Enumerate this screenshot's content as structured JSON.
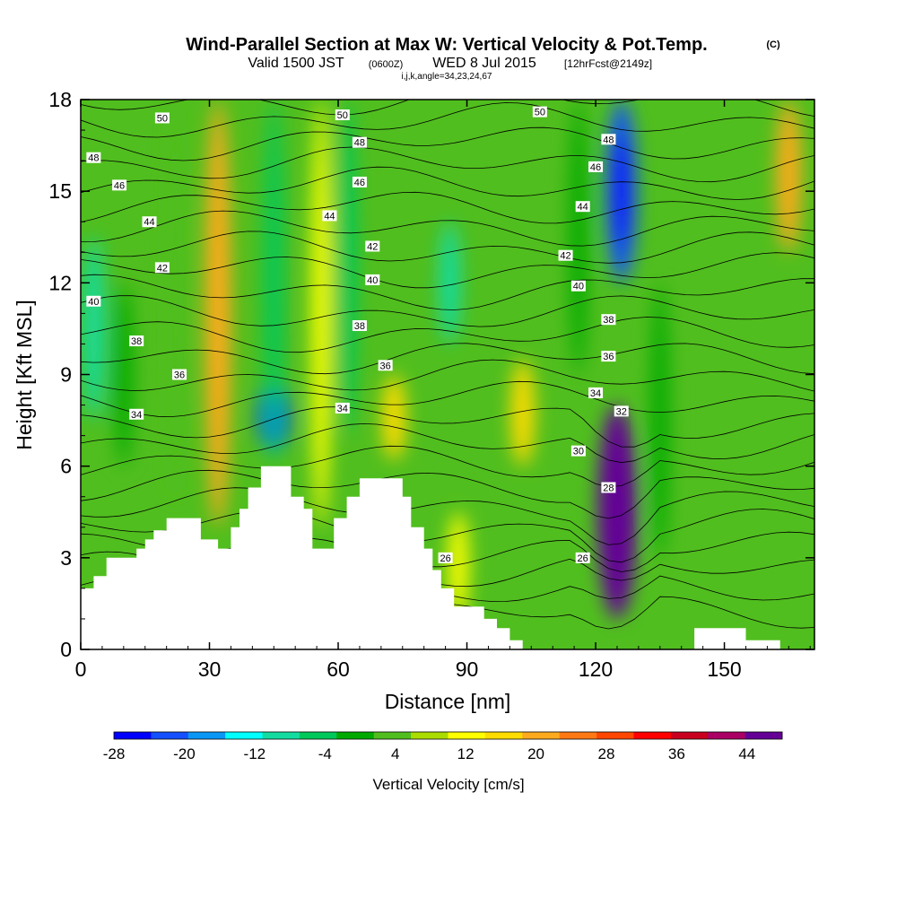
{
  "header": {
    "title": "Wind-Parallel Section at Max W: Vertical Velocity & Pot.Temp.",
    "copyright": "(C)",
    "valid_prefix": "Valid 1500 JST",
    "valid_utc": "(0600Z)",
    "valid_date": "WED 8 Jul 2015",
    "fcst": "[12hrFcst@2149z]",
    "grid": "i,j,k,angle=34,23,24,67"
  },
  "chart_data": {
    "type": "heatmap",
    "title": "Wind-Parallel Section at Max W: Vertical Velocity & Pot.Temp.",
    "xlabel": "Distance [nm]",
    "ylabel": "Height [Kft MSL]",
    "xlim": [
      0,
      171
    ],
    "ylim": [
      0,
      18
    ],
    "xticks": [
      "0",
      "30",
      "60",
      "90",
      "120",
      "150"
    ],
    "xtick_values": [
      0,
      30,
      60,
      90,
      120,
      150
    ],
    "yticks": [
      "0",
      "3",
      "6",
      "9",
      "12",
      "15",
      "18"
    ],
    "ytick_values": [
      0,
      3,
      6,
      9,
      12,
      15,
      18
    ],
    "colorbar": {
      "label": "Vertical Velocity [cm/s]",
      "min": -28,
      "max": 48,
      "step": 4,
      "tick_labels": [
        "-28",
        "-20",
        "-12",
        "-4",
        "4",
        "12",
        "20",
        "28",
        "36",
        "44"
      ],
      "colors": [
        "#0000ff",
        "#1450ff",
        "#0a96f5",
        "#00ffff",
        "#14dca0",
        "#00c85a",
        "#00aa00",
        "#50be1e",
        "#aadc00",
        "#ffff00",
        "#ffdc00",
        "#ffaa1e",
        "#ff7814",
        "#ff4600",
        "#ff0000",
        "#c8001e",
        "#aa0064",
        "#640096"
      ]
    },
    "series": [
      {
        "type": "w_column",
        "x": 3,
        "y_from": 7.5,
        "y_to": 13.5,
        "w": -12
      },
      {
        "type": "w_column",
        "x": 10,
        "y_from": 6,
        "y_to": 12,
        "w": -4
      },
      {
        "type": "w_column",
        "x": 22,
        "y_from": 5,
        "y_to": 18,
        "w": 2
      },
      {
        "type": "w_column",
        "x": 32,
        "y_from": 4,
        "y_to": 18,
        "w": 18
      },
      {
        "type": "w_column",
        "x": 45,
        "y_from": 6.5,
        "y_to": 8.8,
        "w": -26
      },
      {
        "type": "w_column",
        "x": 45,
        "y_from": 6,
        "y_to": 18,
        "w": -8
      },
      {
        "type": "w_column",
        "x": 56,
        "y_from": 4,
        "y_to": 18,
        "w": 8
      },
      {
        "type": "w_column",
        "x": 62,
        "y_from": 7,
        "y_to": 18,
        "w": -8
      },
      {
        "type": "w_column",
        "x": 73,
        "y_from": 6.2,
        "y_to": 9,
        "w": 14
      },
      {
        "type": "w_column",
        "x": 86,
        "y_from": 10,
        "y_to": 14,
        "w": -10
      },
      {
        "type": "w_column",
        "x": 88,
        "y_from": 1,
        "y_to": 4.5,
        "w": 10
      },
      {
        "type": "w_column",
        "x": 103,
        "y_from": 6,
        "y_to": 9.5,
        "w": 14
      },
      {
        "type": "w_column",
        "x": 116,
        "y_from": 9,
        "y_to": 18,
        "w": -3
      },
      {
        "type": "w_column",
        "x": 125,
        "y_from": 1,
        "y_to": 8,
        "w": 40
      },
      {
        "type": "w_column",
        "x": 126,
        "y_from": 12,
        "y_to": 18,
        "w": -24
      },
      {
        "type": "w_column",
        "x": 135,
        "y_from": 3,
        "y_to": 12,
        "w": -2
      },
      {
        "type": "w_column",
        "x": 165,
        "y_from": 13,
        "y_to": 18,
        "w": 16
      }
    ],
    "terrain": [
      [
        0,
        2
      ],
      [
        3,
        2
      ],
      [
        3,
        2.4
      ],
      [
        6,
        2.4
      ],
      [
        6,
        3
      ],
      [
        13,
        3
      ],
      [
        13,
        3.3
      ],
      [
        15,
        3.3
      ],
      [
        15,
        3.6
      ],
      [
        17,
        3.6
      ],
      [
        17,
        3.9
      ],
      [
        20,
        3.9
      ],
      [
        20,
        4.3
      ],
      [
        28,
        4.3
      ],
      [
        28,
        3.6
      ],
      [
        32,
        3.6
      ],
      [
        32,
        3.3
      ],
      [
        35,
        3.3
      ],
      [
        35,
        4
      ],
      [
        37,
        4
      ],
      [
        37,
        4.6
      ],
      [
        39,
        4.6
      ],
      [
        39,
        5.3
      ],
      [
        42,
        5.3
      ],
      [
        42,
        6
      ],
      [
        49,
        6
      ],
      [
        49,
        5
      ],
      [
        52,
        5
      ],
      [
        52,
        4.6
      ],
      [
        54,
        4.6
      ],
      [
        54,
        3.3
      ],
      [
        59,
        3.3
      ],
      [
        59,
        4.3
      ],
      [
        62,
        4.3
      ],
      [
        62,
        5
      ],
      [
        65,
        5
      ],
      [
        65,
        5.6
      ],
      [
        75,
        5.6
      ],
      [
        75,
        5
      ],
      [
        77,
        5
      ],
      [
        77,
        4
      ],
      [
        80,
        4
      ],
      [
        80,
        3.3
      ],
      [
        82,
        3.3
      ],
      [
        82,
        2.6
      ],
      [
        84,
        2.6
      ],
      [
        84,
        2
      ],
      [
        87,
        2
      ],
      [
        87,
        1.4
      ],
      [
        94,
        1.4
      ],
      [
        94,
        1
      ],
      [
        97,
        1
      ],
      [
        97,
        0.7
      ],
      [
        100,
        0.7
      ],
      [
        100,
        0.3
      ],
      [
        103,
        0.3
      ],
      [
        103,
        0
      ],
      [
        143,
        0
      ],
      [
        143,
        0.7
      ],
      [
        155,
        0.7
      ],
      [
        155,
        0.3
      ],
      [
        163,
        0.3
      ],
      [
        163,
        0
      ],
      [
        171,
        0
      ]
    ],
    "isentrope_labels": [
      {
        "text": "50",
        "x": 19,
        "y": 17.4
      },
      {
        "text": "48",
        "x": 3,
        "y": 16.1
      },
      {
        "text": "46",
        "x": 9,
        "y": 15.2
      },
      {
        "text": "44",
        "x": 16,
        "y": 14
      },
      {
        "text": "42",
        "x": 19,
        "y": 12.5
      },
      {
        "text": "40",
        "x": 3,
        "y": 11.4
      },
      {
        "text": "38",
        "x": 13,
        "y": 10.1
      },
      {
        "text": "36",
        "x": 23,
        "y": 9
      },
      {
        "text": "34",
        "x": 13,
        "y": 7.7
      },
      {
        "text": "50",
        "x": 61,
        "y": 17.5
      },
      {
        "text": "48",
        "x": 65,
        "y": 16.6
      },
      {
        "text": "46",
        "x": 65,
        "y": 15.3
      },
      {
        "text": "44",
        "x": 58,
        "y": 14.2
      },
      {
        "text": "42",
        "x": 68,
        "y": 13.2
      },
      {
        "text": "40",
        "x": 68,
        "y": 12.1
      },
      {
        "text": "38",
        "x": 65,
        "y": 10.6
      },
      {
        "text": "36",
        "x": 71,
        "y": 9.3
      },
      {
        "text": "34",
        "x": 61,
        "y": 7.9
      },
      {
        "text": "50",
        "x": 107,
        "y": 17.6
      },
      {
        "text": "48",
        "x": 123,
        "y": 16.7
      },
      {
        "text": "46",
        "x": 120,
        "y": 15.8
      },
      {
        "text": "44",
        "x": 117,
        "y": 14.5
      },
      {
        "text": "42",
        "x": 113,
        "y": 12.9
      },
      {
        "text": "40",
        "x": 116,
        "y": 11.9
      },
      {
        "text": "38",
        "x": 123,
        "y": 10.8
      },
      {
        "text": "36",
        "x": 123,
        "y": 9.6
      },
      {
        "text": "34",
        "x": 120,
        "y": 8.4
      },
      {
        "text": "32",
        "x": 126,
        "y": 7.8
      },
      {
        "text": "30",
        "x": 116,
        "y": 6.5
      },
      {
        "text": "28",
        "x": 123,
        "y": 5.3
      },
      {
        "text": "26",
        "x": 85,
        "y": 3
      },
      {
        "text": "26",
        "x": 117,
        "y": 3
      }
    ]
  }
}
